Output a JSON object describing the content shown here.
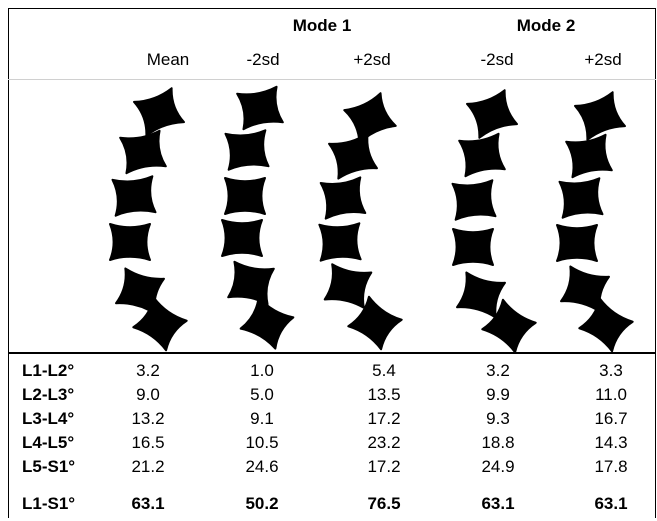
{
  "header": {
    "modes": [
      {
        "label": "Mode 1",
        "key": "mode1"
      },
      {
        "label": "Mode 2",
        "key": "mode2"
      }
    ],
    "columns": [
      "Mean",
      "-2sd",
      "+2sd",
      "-2sd",
      "+2sd"
    ]
  },
  "rows": [
    {
      "label": "L1-L2°",
      "values": [
        "3.2",
        "1.0",
        "5.4",
        "3.2",
        "3.3"
      ]
    },
    {
      "label": "L2-L3°",
      "values": [
        "9.0",
        "5.0",
        "13.5",
        "9.9",
        "11.0"
      ]
    },
    {
      "label": "L3-L4°",
      "values": [
        "13.2",
        "9.1",
        "17.2",
        "9.3",
        "16.7"
      ]
    },
    {
      "label": "L4-L5°",
      "values": [
        "16.5",
        "10.5",
        "23.2",
        "18.8",
        "14.3"
      ]
    },
    {
      "label": "L5-S1°",
      "values": [
        "21.2",
        "24.6",
        "17.2",
        "24.9",
        "17.8"
      ]
    }
  ],
  "total": {
    "label": "L1-S1°",
    "values": [
      "63.1",
      "50.2",
      "76.5",
      "63.1",
      "63.1"
    ]
  },
  "colors": {
    "vertebra": "#000000",
    "line": "#000000",
    "divider": "#d0d0d0"
  }
}
